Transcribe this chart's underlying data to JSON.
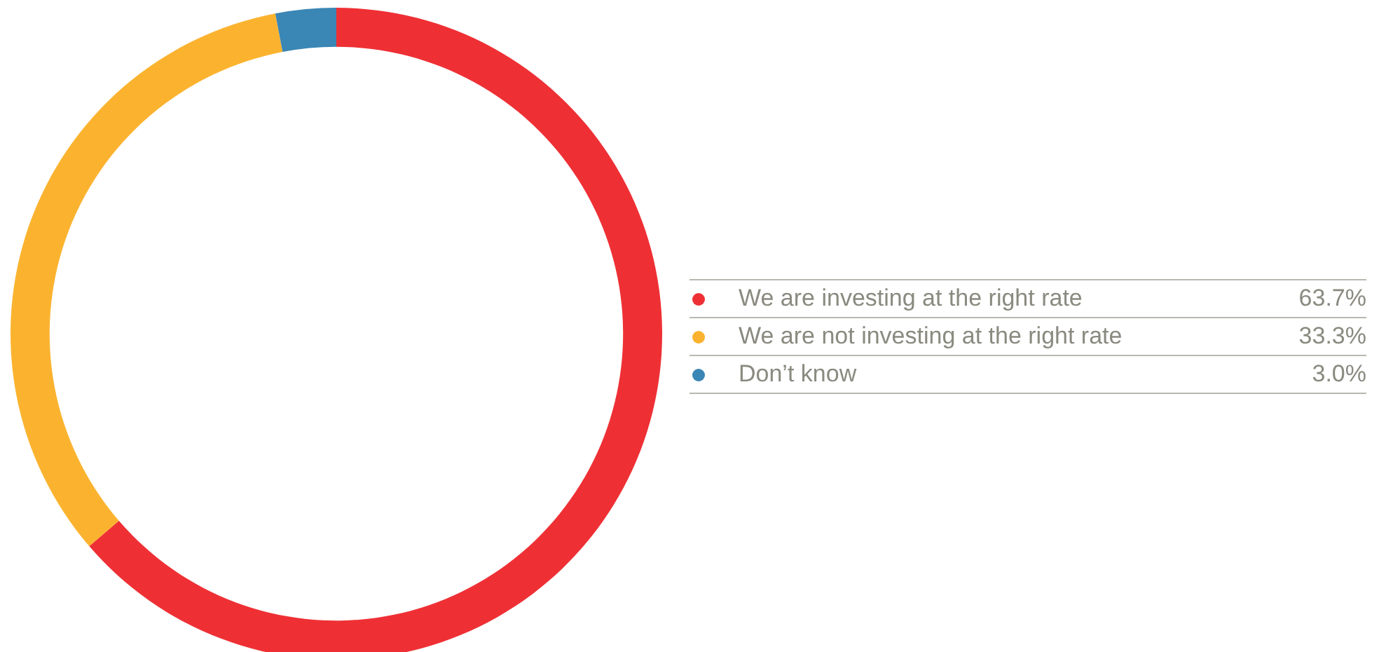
{
  "chart_data": {
    "type": "donut",
    "categories": [
      "We are investing at the right rate",
      "We are not investing at the right rate",
      "Don’t know"
    ],
    "values": [
      63.7,
      33.3,
      3.0
    ],
    "value_labels": [
      "63.7%",
      "33.3%",
      "3.0%"
    ],
    "colors": [
      "#ee3035",
      "#fbb32f",
      "#3a86b5"
    ],
    "legend": "right"
  }
}
